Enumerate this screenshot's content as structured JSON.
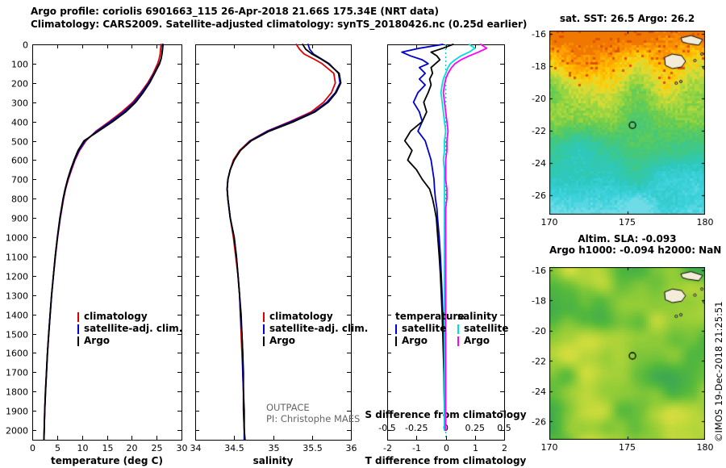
{
  "titles": {
    "line1": "Argo profile: coriolis 6901663_115 26-Apr-2018 21.66S 175.34E (NRT data)",
    "line2": "Climatology: CARS2009. Satellite-adjusted climatology: synTS_20180426.nc (0.25d earlier)"
  },
  "notes": {
    "campaign": "OUTPACE",
    "pi": "PI: Christophe MAES"
  },
  "copyright": "©IMOS 19-Dec-2018 21:25:51",
  "legends": {
    "profile": [
      {
        "label": "climatology",
        "color": "#dd0000"
      },
      {
        "label": "satellite-adj. clim.",
        "color": "#0000cc"
      },
      {
        "label": "Argo",
        "color": "#000000"
      }
    ],
    "diff_temperature": {
      "header": "temperature",
      "items": [
        {
          "label": "satellite",
          "color": "#0000cc"
        },
        {
          "label": "Argo",
          "color": "#000000"
        }
      ]
    },
    "diff_salinity": {
      "header": "salinity",
      "items": [
        {
          "label": "satellite",
          "color": "#00dddd"
        },
        {
          "label": "Argo",
          "color": "#ff00ff"
        }
      ]
    }
  },
  "chart_data": [
    {
      "type": "line",
      "panel": "temperature",
      "xlabel": "temperature (deg C)",
      "ylabel": "depth (m)",
      "xlim": [
        0,
        30
      ],
      "ylim": [
        2050,
        0
      ],
      "x_ticks": [
        0,
        5,
        10,
        15,
        20,
        25,
        30
      ],
      "y_ticks": [
        0,
        100,
        200,
        300,
        400,
        500,
        600,
        700,
        800,
        900,
        1000,
        1100,
        1200,
        1300,
        1400,
        1500,
        1600,
        1700,
        1800,
        1900,
        2000
      ],
      "depths": [
        0,
        25,
        50,
        75,
        100,
        150,
        200,
        250,
        300,
        350,
        400,
        450,
        500,
        550,
        600,
        650,
        700,
        750,
        800,
        900,
        1000,
        1100,
        1200,
        1300,
        1400,
        1500,
        1600,
        1700,
        1800,
        1900,
        2000,
        2050
      ],
      "series": [
        {
          "name": "climatology",
          "color": "#dd0000",
          "values": [
            25.9,
            25.8,
            25.7,
            25.5,
            25.2,
            24.3,
            23.2,
            21.8,
            20.2,
            18.0,
            15.5,
            12.8,
            10.8,
            9.5,
            8.6,
            7.9,
            7.25,
            6.7,
            6.3,
            5.65,
            5.1,
            4.65,
            4.25,
            3.9,
            3.6,
            3.3,
            3.05,
            2.85,
            2.65,
            2.5,
            2.4,
            2.35
          ]
        },
        {
          "name": "satellite-adj. clim.",
          "color": "#0000cc",
          "values": [
            26.3,
            26.2,
            26.1,
            25.9,
            25.5,
            24.5,
            23.4,
            22.0,
            20.5,
            18.4,
            15.8,
            13.0,
            10.6,
            9.35,
            8.5,
            7.8,
            7.15,
            6.65,
            6.25,
            5.6,
            5.07,
            4.62,
            4.25,
            3.9,
            3.6,
            3.32,
            3.07,
            2.87,
            2.67,
            2.52,
            2.4,
            2.35
          ]
        },
        {
          "name": "Argo",
          "color": "#000000",
          "values": [
            26.2,
            26.15,
            26.05,
            25.9,
            25.6,
            24.6,
            23.6,
            22.3,
            20.8,
            18.8,
            16.2,
            13.3,
            10.4,
            9.2,
            8.4,
            7.7,
            7.1,
            6.6,
            6.2,
            5.55,
            5.05,
            4.6,
            4.25,
            3.88,
            3.58,
            3.3,
            3.05,
            2.85,
            2.66,
            2.5,
            2.4,
            2.35
          ]
        }
      ]
    },
    {
      "type": "line",
      "panel": "salinity",
      "xlabel": "salinity",
      "ylabel": "depth (m)",
      "xlim": [
        34,
        36
      ],
      "ylim": [
        2050,
        0
      ],
      "x_ticks": [
        34,
        34.5,
        35,
        35.5,
        36
      ],
      "y_ticks": [
        0,
        100,
        200,
        300,
        400,
        500,
        600,
        700,
        800,
        900,
        1000,
        1100,
        1200,
        1300,
        1400,
        1500,
        1600,
        1700,
        1800,
        1900,
        2000
      ],
      "depths": [
        0,
        25,
        50,
        75,
        100,
        150,
        200,
        250,
        300,
        350,
        400,
        450,
        500,
        550,
        600,
        650,
        700,
        750,
        800,
        900,
        1000,
        1100,
        1200,
        1300,
        1400,
        1500,
        1600,
        1700,
        1800,
        1900,
        2000,
        2050
      ],
      "series": [
        {
          "name": "climatology",
          "color": "#dd0000",
          "values": [
            35.3,
            35.34,
            35.4,
            35.52,
            35.63,
            35.78,
            35.8,
            35.75,
            35.65,
            35.49,
            35.22,
            34.92,
            34.7,
            34.57,
            34.49,
            34.45,
            34.42,
            34.41,
            34.42,
            34.45,
            34.49,
            34.52,
            34.55,
            34.57,
            34.58,
            34.59,
            34.6,
            34.61,
            34.62,
            34.62,
            34.63,
            34.63
          ]
        },
        {
          "name": "satellite-adj. clim.",
          "color": "#0000cc",
          "values": [
            35.45,
            35.47,
            35.52,
            35.62,
            35.72,
            35.84,
            35.86,
            35.8,
            35.69,
            35.52,
            35.24,
            34.93,
            34.71,
            34.58,
            34.5,
            34.45,
            34.42,
            34.41,
            34.42,
            34.45,
            34.5,
            34.53,
            34.55,
            34.57,
            34.58,
            34.6,
            34.61,
            34.61,
            34.62,
            34.62,
            34.63,
            34.63
          ]
        },
        {
          "name": "Argo",
          "color": "#000000",
          "values": [
            35.38,
            35.42,
            35.5,
            35.61,
            35.71,
            35.85,
            35.87,
            35.81,
            35.71,
            35.54,
            35.27,
            34.95,
            34.72,
            34.58,
            34.5,
            34.45,
            34.42,
            34.41,
            34.42,
            34.45,
            34.5,
            34.53,
            34.55,
            34.57,
            34.59,
            34.6,
            34.61,
            34.62,
            34.62,
            34.63,
            34.63,
            34.64
          ]
        }
      ]
    },
    {
      "type": "line",
      "panel": "difference",
      "xlabel_bottom": "T difference from climatology",
      "xlabel_top": "S difference from climatology",
      "xlim_t": [
        -2,
        2
      ],
      "xlim_s": [
        -0.5,
        0.5
      ],
      "ylim": [
        2050,
        0
      ],
      "x_ticks_t": [
        -2,
        -1,
        0,
        1,
        2
      ],
      "x_ticks_s": [
        -0.5,
        -0.25,
        0,
        0.25,
        0.5
      ],
      "y_ticks": [
        0,
        100,
        200,
        300,
        400,
        500,
        600,
        700,
        800,
        900,
        1000,
        1100,
        1200,
        1300,
        1400,
        1500,
        1600,
        1700,
        1800,
        1900,
        2000
      ],
      "zero_line_color": "#00cccc",
      "depths": [
        0,
        20,
        40,
        60,
        80,
        100,
        120,
        150,
        180,
        210,
        250,
        300,
        350,
        400,
        450,
        500,
        550,
        600,
        650,
        700,
        750,
        800,
        850,
        900,
        1000,
        1100,
        1200,
        1300,
        1400,
        1500,
        1600,
        1700,
        1800,
        1900,
        2000
      ],
      "series": [
        {
          "name": "temperature satellite",
          "scale": "t",
          "color": "#0000cc",
          "values": [
            -0.1,
            -0.9,
            -1.5,
            -1.2,
            -0.8,
            -0.6,
            -0.9,
            -0.7,
            -0.9,
            -0.7,
            -0.95,
            -1.1,
            -0.9,
            -0.8,
            -0.95,
            -0.7,
            -0.6,
            -0.5,
            -0.45,
            -0.4,
            -0.38,
            -0.35,
            -0.3,
            -0.28,
            -0.22,
            -0.18,
            -0.15,
            -0.12,
            -0.1,
            -0.08,
            -0.07,
            -0.05,
            -0.05,
            -0.04,
            -0.03
          ]
        },
        {
          "name": "temperature Argo",
          "scale": "t",
          "color": "#000000",
          "values": [
            0.25,
            -0.1,
            -0.5,
            -0.3,
            -0.2,
            -0.35,
            -0.5,
            -0.45,
            -0.55,
            -0.5,
            -0.6,
            -0.75,
            -0.65,
            -0.8,
            -1.2,
            -1.4,
            -1.15,
            -1.3,
            -1.0,
            -0.8,
            -0.55,
            -0.45,
            -0.38,
            -0.32,
            -0.27,
            -0.22,
            -0.18,
            -0.15,
            -0.12,
            -0.1,
            -0.08,
            -0.06,
            -0.05,
            -0.04,
            -0.03
          ]
        },
        {
          "name": "salinity satellite",
          "scale": "s",
          "color": "#00dddd",
          "values": [
            0.2,
            0.25,
            0.2,
            0.13,
            0.08,
            0.04,
            0.02,
            0.0,
            -0.02,
            -0.03,
            -0.04,
            -0.03,
            -0.02,
            -0.01,
            0.0,
            -0.01,
            -0.01,
            -0.02,
            -0.01,
            -0.01,
            -0.01,
            -0.01,
            -0.01,
            -0.01,
            -0.01,
            -0.01,
            -0.01,
            -0.01,
            -0.01,
            -0.01,
            -0.01,
            -0.01,
            -0.01,
            -0.01,
            -0.01
          ]
        },
        {
          "name": "salinity Argo",
          "scale": "s",
          "color": "#ff00ff",
          "values": [
            0.3,
            0.35,
            0.28,
            0.2,
            0.13,
            0.08,
            0.05,
            0.02,
            0.0,
            -0.01,
            -0.02,
            -0.01,
            0.0,
            0.01,
            0.02,
            0.01,
            0.01,
            0.0,
            0.0,
            0.0,
            0.01,
            0.01,
            0.0,
            0.0,
            0.0,
            0.0,
            0.0,
            0.0,
            0.0,
            0.0,
            0.0,
            0.0,
            0.0,
            0.0,
            0.0
          ]
        }
      ]
    },
    {
      "type": "heatmap",
      "panel": "sst_map",
      "title": "sat. SST: 26.5 Argo: 26.2",
      "x_ticks": [
        170,
        175,
        180
      ],
      "y_ticks": [
        -16,
        -18,
        -20,
        -22,
        -24,
        -26
      ],
      "lon_range": [
        170,
        180
      ],
      "lat_range": [
        -27.2,
        -15.8
      ],
      "marker": {
        "lon": 175.34,
        "lat": -21.66
      },
      "island_fill": "#f2ecd8",
      "palette": [
        [
          0,
          "#f07800"
        ],
        [
          0.08,
          "#ff9c00"
        ],
        [
          0.17,
          "#ffc800"
        ],
        [
          0.25,
          "#e6dc32"
        ],
        [
          0.33,
          "#aad73c"
        ],
        [
          0.43,
          "#6ecd4b"
        ],
        [
          0.53,
          "#4bc86e"
        ],
        [
          0.65,
          "#37c89b"
        ],
        [
          0.77,
          "#2dc8be"
        ],
        [
          0.9,
          "#3cd2dc"
        ],
        [
          1,
          "#6edce6"
        ]
      ],
      "islands": [
        [
          [
            177.4,
            -17.45
          ],
          [
            177.9,
            -17.25
          ],
          [
            178.5,
            -17.35
          ],
          [
            178.75,
            -17.7
          ],
          [
            178.5,
            -18.05
          ],
          [
            177.9,
            -18.15
          ],
          [
            177.45,
            -17.95
          ]
        ],
        [
          [
            178.45,
            -16.25
          ],
          [
            179.1,
            -16.1
          ],
          [
            179.85,
            -16.35
          ],
          [
            179.6,
            -16.7
          ],
          [
            178.9,
            -16.6
          ],
          [
            178.55,
            -16.5
          ]
        ]
      ],
      "islets": [
        [
          179.8,
          -17.25
        ],
        [
          179.95,
          -18.1
        ],
        [
          179.35,
          -17.65
        ],
        [
          178.15,
          -19.05
        ],
        [
          178.45,
          -18.95
        ]
      ]
    },
    {
      "type": "heatmap",
      "panel": "sla_map",
      "title1": "Altim. SLA: -0.093",
      "title2": "Argo h1000: -0.094 h2000: NaN",
      "x_ticks": [
        170,
        175,
        180
      ],
      "y_ticks": [
        -16,
        -18,
        -20,
        -22,
        -24,
        -26
      ],
      "lon_range": [
        170,
        180
      ],
      "lat_range": [
        -27.2,
        -15.8
      ],
      "marker": {
        "lon": 175.34,
        "lat": -21.66
      },
      "island_fill": "#f2ecd8",
      "palette": [
        [
          0,
          "#2d9e5f"
        ],
        [
          0.3,
          "#55b93c"
        ],
        [
          0.55,
          "#96cd37"
        ],
        [
          0.78,
          "#cddc3c"
        ],
        [
          1,
          "#eedc50"
        ]
      ],
      "islands": [
        [
          [
            177.4,
            -17.45
          ],
          [
            177.9,
            -17.25
          ],
          [
            178.5,
            -17.35
          ],
          [
            178.75,
            -17.7
          ],
          [
            178.5,
            -18.05
          ],
          [
            177.9,
            -18.15
          ],
          [
            177.45,
            -17.95
          ]
        ],
        [
          [
            178.45,
            -16.25
          ],
          [
            179.1,
            -16.1
          ],
          [
            179.85,
            -16.35
          ],
          [
            179.6,
            -16.7
          ],
          [
            178.9,
            -16.6
          ],
          [
            178.55,
            -16.5
          ]
        ]
      ],
      "islets": [
        [
          179.8,
          -17.25
        ],
        [
          179.95,
          -18.1
        ],
        [
          179.35,
          -17.65
        ],
        [
          178.15,
          -19.05
        ],
        [
          178.45,
          -18.95
        ]
      ]
    }
  ]
}
